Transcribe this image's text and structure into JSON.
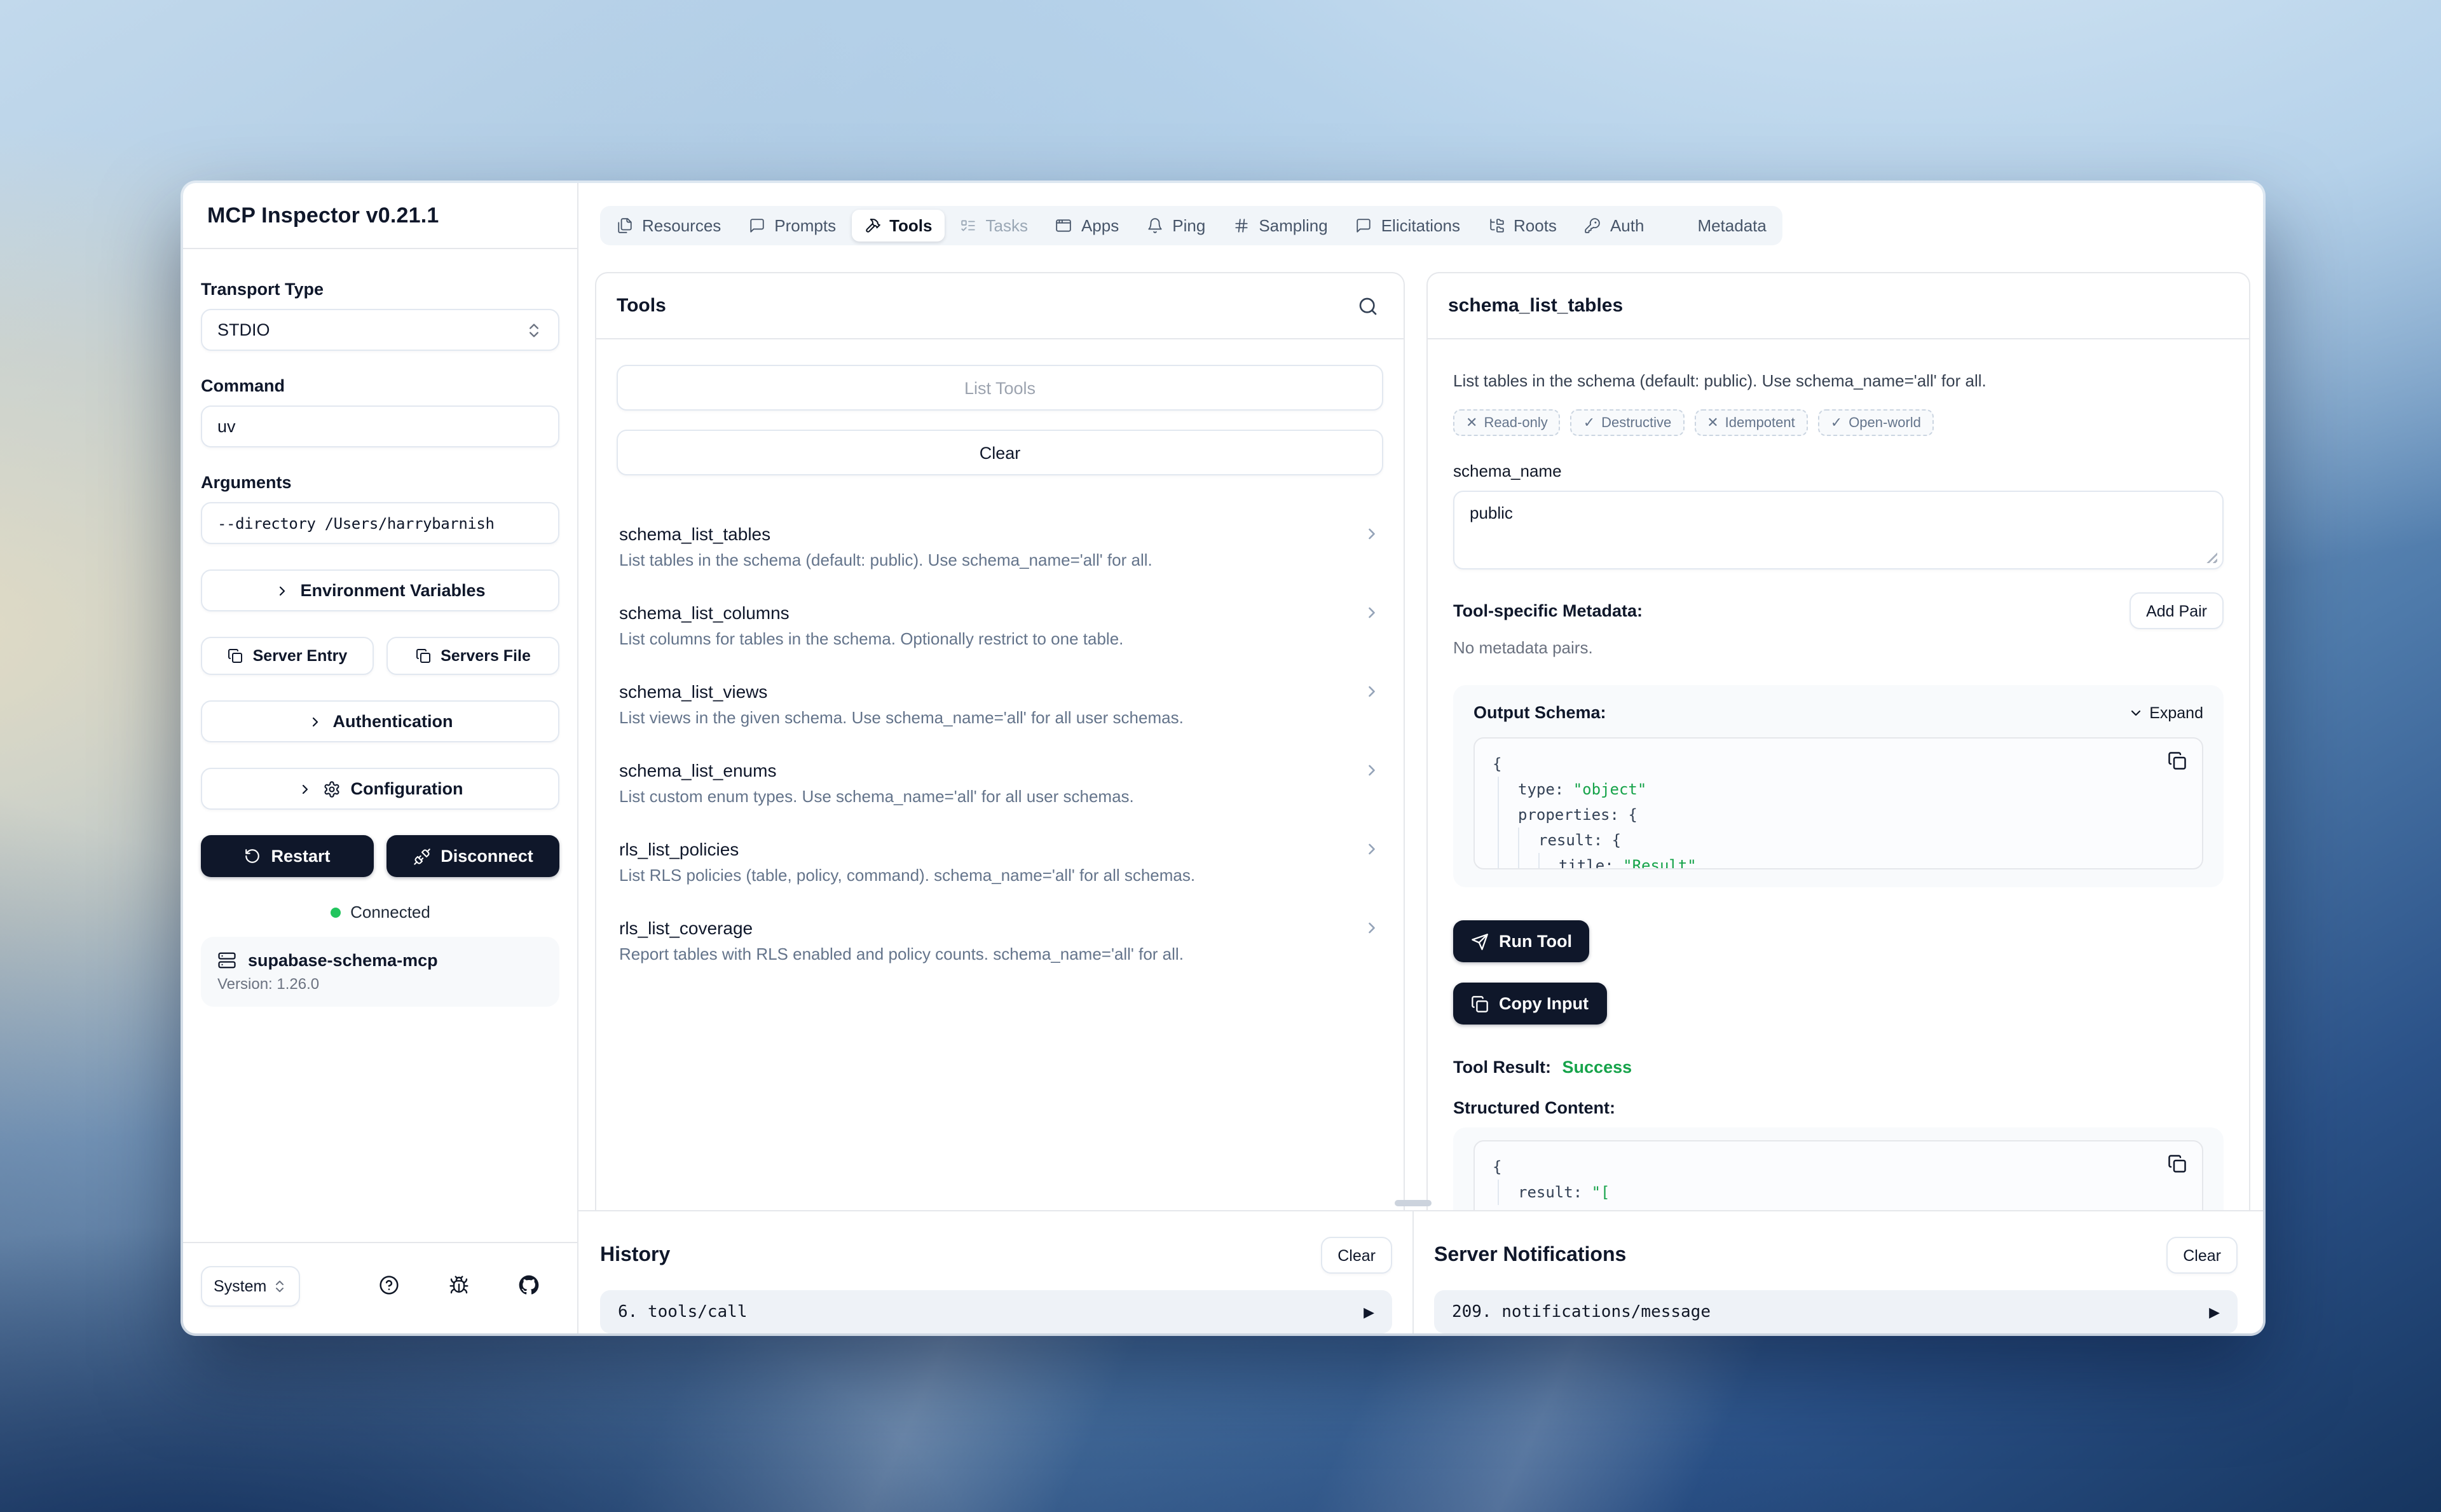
{
  "app": {
    "window_title": "MCP Inspector v0.21.1"
  },
  "sidebar": {
    "transport": {
      "label": "Transport Type",
      "value": "STDIO"
    },
    "command": {
      "label": "Command",
      "value": "uv"
    },
    "arguments": {
      "label": "Arguments",
      "value": "--directory /Users/harrybarnish"
    },
    "env_variables_label": "Environment Variables",
    "server_entry_label": "Server Entry",
    "servers_file_label": "Servers File",
    "authentication_label": "Authentication",
    "configuration_label": "Configuration",
    "restart_label": "Restart",
    "disconnect_label": "Disconnect",
    "connection_status": "Connected",
    "server": {
      "name": "supabase-schema-mcp",
      "version": "Version: 1.26.0"
    },
    "theme": {
      "value": "System"
    }
  },
  "tabs": [
    {
      "label": "Resources",
      "icon": "files-icon",
      "state": "default"
    },
    {
      "label": "Prompts",
      "icon": "message-square-icon",
      "state": "default"
    },
    {
      "label": "Tools",
      "icon": "hammer-icon",
      "state": "active"
    },
    {
      "label": "Tasks",
      "icon": "list-todo-icon",
      "state": "disabled"
    },
    {
      "label": "Apps",
      "icon": "app-window-icon",
      "state": "default"
    },
    {
      "label": "Ping",
      "icon": "bell-icon",
      "state": "default"
    },
    {
      "label": "Sampling",
      "icon": "hash-icon",
      "state": "default"
    },
    {
      "label": "Elicitations",
      "icon": "message-square-icon",
      "state": "default"
    },
    {
      "label": "Roots",
      "icon": "folder-tree-icon",
      "state": "default"
    },
    {
      "label": "Auth",
      "icon": "key-icon",
      "state": "default"
    },
    {
      "label": "Metadata",
      "icon": "gear-icon",
      "state": "default"
    }
  ],
  "tools_panel": {
    "title": "Tools",
    "list_tools_label": "List Tools",
    "clear_label": "Clear",
    "items": [
      {
        "name": "schema_list_tables",
        "description": "List tables in the schema (default: public). Use schema_name='all' for all."
      },
      {
        "name": "schema_list_columns",
        "description": "List columns for tables in the schema. Optionally restrict to one table."
      },
      {
        "name": "schema_list_views",
        "description": "List views in the given schema. Use schema_name='all' for all user schemas."
      },
      {
        "name": "schema_list_enums",
        "description": "List custom enum types. Use schema_name='all' for all user schemas."
      },
      {
        "name": "rls_list_policies",
        "description": "List RLS policies (table, policy, command). schema_name='all' for all schemas."
      },
      {
        "name": "rls_list_coverage",
        "description": "Report tables with RLS enabled and policy counts. schema_name='all' for all."
      }
    ]
  },
  "detail_panel": {
    "title": "schema_list_tables",
    "description": "List tables in the schema (default: public). Use schema_name='all' for all.",
    "badges": [
      {
        "mark": "✕",
        "label": "Read-only"
      },
      {
        "mark": "✓",
        "label": "Destructive"
      },
      {
        "mark": "✕",
        "label": "Idempotent"
      },
      {
        "mark": "✓",
        "label": "Open-world"
      }
    ],
    "param": {
      "label": "schema_name",
      "value": "public"
    },
    "metadata_heading": "Tool-specific Metadata:",
    "add_pair_label": "Add Pair",
    "no_metadata_text": "No metadata pairs.",
    "output_schema": {
      "heading": "Output Schema:",
      "expand_label": "Expand",
      "lines": [
        {
          "indent": 0,
          "code": "{",
          "string": ""
        },
        {
          "indent": 1,
          "code": "type: ",
          "string": "\"object\""
        },
        {
          "indent": 1,
          "code": "properties: {",
          "string": ""
        },
        {
          "indent": 2,
          "code": "result: {",
          "string": ""
        },
        {
          "indent": 3,
          "code": "title: ",
          "string": "\"Result\""
        }
      ]
    },
    "run_tool_label": "Run Tool",
    "copy_input_label": "Copy Input",
    "result": {
      "label": "Tool Result:",
      "value": "Success"
    },
    "structured": {
      "heading": "Structured Content:",
      "lines": [
        {
          "indent": 0,
          "code": "{",
          "string": ""
        },
        {
          "indent": 1,
          "code": "result: ",
          "string": "\"["
        }
      ]
    }
  },
  "history_panel": {
    "title": "History",
    "clear_label": "Clear",
    "entries": [
      {
        "text": "6. tools/call"
      }
    ]
  },
  "notifications_panel": {
    "title": "Server Notifications",
    "clear_label": "Clear",
    "entries": [
      {
        "text": "209. notifications/message"
      }
    ]
  },
  "colors": {
    "accent_dark": "#0f172a",
    "success_green": "#16a34a",
    "code_string_green": "#16a34a",
    "status_dot_green": "#22c55e"
  }
}
